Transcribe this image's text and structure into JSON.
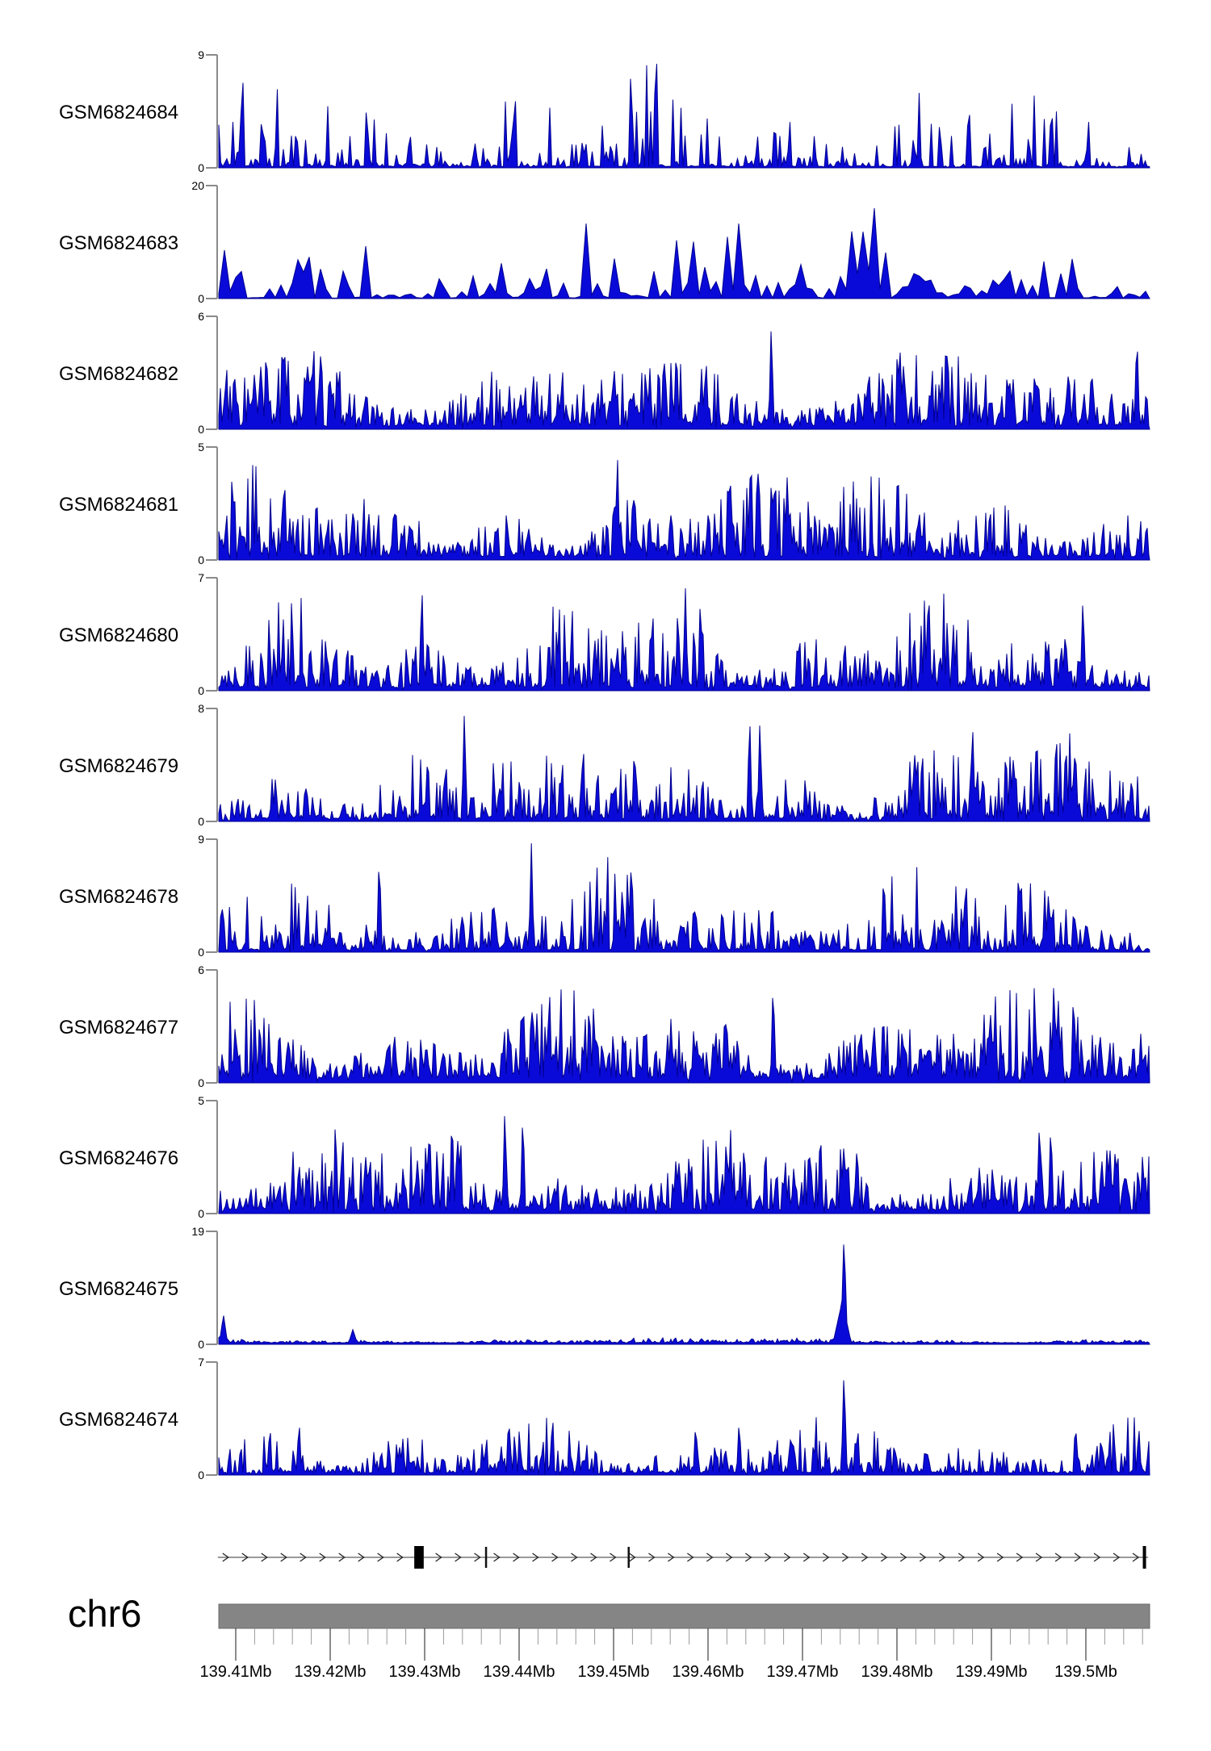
{
  "figure": {
    "kind": "genome-coverage-tracks",
    "background": "#ffffff",
    "chromosome_label": "chr6"
  },
  "colors": {
    "signal_fill": "#0a0ad8",
    "signal_stroke": "#000090",
    "axis_gray": "#8a8a8a",
    "text_black": "#000000",
    "ruler_bar_fill": "#858585",
    "ruler_bar_stroke": "#6b6b6b",
    "minor_tick": "#999999",
    "major_tick": "#1a1a1a",
    "gene_line": "#787878",
    "chevron": "#222222",
    "exon_fill": "#000000"
  },
  "chart_data": {
    "type": "area",
    "chromosome": "chr6",
    "x_domain_mb": [
      139.408,
      139.507
    ],
    "x_axis": {
      "tick_labels": [
        "139.41Mb",
        "139.42Mb",
        "139.43Mb",
        "139.44Mb",
        "139.45Mb",
        "139.46Mb",
        "139.47Mb",
        "139.48Mb",
        "139.49Mb",
        "139.5Mb"
      ],
      "tick_values_mb": [
        139.41,
        139.42,
        139.43,
        139.44,
        139.45,
        139.46,
        139.47,
        139.48,
        139.49,
        139.5
      ],
      "major_tick_step_mb": 0.01,
      "minor_tick_step_mb": 0.002
    },
    "tracks": [
      {
        "label": "GSM6824684",
        "ymax": 9,
        "yticks": [
          0,
          9
        ],
        "seed": 11,
        "noise": {
          "floor": 0.012,
          "amp": 1.0,
          "k": 5.2,
          "step": 2.5,
          "zc": 0.12
        },
        "peaks": [
          {
            "mb": 139.4107,
            "value": 9.0
          }
        ]
      },
      {
        "label": "GSM6824683",
        "ymax": 20,
        "yticks": [
          0,
          20
        ],
        "seed": 22,
        "noise": {
          "floor": 0.01,
          "amp": 0.88,
          "k": 2.8,
          "step": 7,
          "zc": 0.28
        },
        "peaks": [
          {
            "mb": 139.447,
            "value": 20
          },
          {
            "mb": 139.4502,
            "value": 12
          },
          {
            "mb": 139.4763,
            "value": 19.5
          }
        ]
      },
      {
        "label": "GSM6824682",
        "ymax": 6,
        "yticks": [
          0,
          6
        ],
        "seed": 33,
        "noise": {
          "floor": 0.03,
          "amp": 0.8,
          "k": 2.1,
          "step": 2,
          "zc": 0.04
        },
        "peaks": [
          {
            "mb": 139.4667,
            "value": 5.9
          },
          {
            "mb": 139.5054,
            "value": 5.5
          }
        ]
      },
      {
        "label": "GSM6824681",
        "ymax": 5,
        "yticks": [
          0,
          5
        ],
        "seed": 44,
        "noise": {
          "floor": 0.03,
          "amp": 0.82,
          "k": 2.2,
          "step": 2,
          "zc": 0.04
        },
        "peaks": [
          {
            "mb": 139.4504,
            "value": 4.9
          },
          {
            "mb": 139.4645,
            "value": 4.5
          },
          {
            "mb": 139.4671,
            "value": 4.3
          },
          {
            "mb": 139.4684,
            "value": 4.0
          }
        ]
      },
      {
        "label": "GSM6824680",
        "ymax": 7,
        "yticks": [
          0,
          7
        ],
        "seed": 55,
        "noise": {
          "floor": 0.03,
          "amp": 0.85,
          "k": 2.3,
          "step": 2,
          "zc": 0.05
        },
        "peaks": [
          {
            "mb": 139.4297,
            "value": 7.0
          },
          {
            "mb": 139.4576,
            "value": 6.5
          },
          {
            "mb": 139.4592,
            "value": 6.3
          },
          {
            "mb": 139.4997,
            "value": 6.2
          }
        ]
      },
      {
        "label": "GSM6824679",
        "ymax": 8,
        "yticks": [
          0,
          8
        ],
        "seed": 66,
        "noise": {
          "floor": 0.025,
          "amp": 0.82,
          "k": 2.6,
          "step": 2,
          "zc": 0.06
        },
        "peaks": [
          {
            "mb": 139.4342,
            "value": 7.8
          },
          {
            "mb": 139.4644,
            "value": 8.0
          },
          {
            "mb": 139.4655,
            "value": 7.6
          },
          {
            "mb": 139.488,
            "value": 7.2
          }
        ]
      },
      {
        "label": "GSM6824678",
        "ymax": 9,
        "yticks": [
          0,
          9
        ],
        "seed": 77,
        "noise": {
          "floor": 0.02,
          "amp": 0.85,
          "k": 3.0,
          "step": 2.2,
          "zc": 0.08
        },
        "peaks": [
          {
            "mb": 139.4252,
            "value": 8.6
          },
          {
            "mb": 139.4413,
            "value": 8.7
          },
          {
            "mb": 139.4519,
            "value": 8.5
          },
          {
            "mb": 139.4929,
            "value": 7.7
          }
        ]
      },
      {
        "label": "GSM6824677",
        "ymax": 6,
        "yticks": [
          0,
          6
        ],
        "seed": 88,
        "noise": {
          "floor": 0.04,
          "amp": 0.85,
          "k": 1.9,
          "step": 2,
          "zc": 0.03
        },
        "peaks": [
          {
            "mb": 139.4432,
            "value": 5.5
          },
          {
            "mb": 139.4669,
            "value": 5.8
          },
          {
            "mb": 139.4966,
            "value": 5.4
          },
          {
            "mb": 139.4987,
            "value": 5.3
          }
        ]
      },
      {
        "label": "GSM6824676",
        "ymax": 5,
        "yticks": [
          0,
          5
        ],
        "seed": 99,
        "noise": {
          "floor": 0.03,
          "amp": 0.8,
          "k": 2.2,
          "step": 2,
          "zc": 0.05
        },
        "peaks": [
          {
            "mb": 139.4329,
            "value": 4.8
          },
          {
            "mb": 139.4385,
            "value": 5.0
          },
          {
            "mb": 139.4404,
            "value": 4.8
          },
          {
            "mb": 139.4951,
            "value": 4.5
          },
          {
            "mb": 139.4963,
            "value": 4.3
          }
        ]
      },
      {
        "label": "GSM6824675",
        "ymax": 19,
        "yticks": [
          0,
          19
        ],
        "seed": 111,
        "noise": {
          "floor": 0.013,
          "amp": 0.05,
          "k": 2.0,
          "step": 2,
          "zc": 0
        },
        "peaks": [
          {
            "mb": 139.4087,
            "value": 5.0,
            "hw_kb": 0.45
          },
          {
            "mb": 139.4224,
            "value": 2.5,
            "hw_kb": 0.5
          },
          {
            "mb": 139.4742,
            "value": 7.2,
            "hw_kb": 1.0
          },
          {
            "mb": 139.4744,
            "value": 19,
            "hw_kb": 0.35
          }
        ]
      },
      {
        "label": "GSM6824674",
        "ymax": 7,
        "yticks": [
          0,
          7
        ],
        "seed": 122,
        "noise": {
          "floor": 0.02,
          "amp": 0.55,
          "k": 3.4,
          "step": 2,
          "zc": 0.12
        },
        "peaks": [
          {
            "mb": 139.4167,
            "value": 3.6
          },
          {
            "mb": 139.4389,
            "value": 3.9
          },
          {
            "mb": 139.4587,
            "value": 3.5
          },
          {
            "mb": 139.4633,
            "value": 3.6
          },
          {
            "mb": 139.4744,
            "value": 6.8,
            "hw_kb": 0.3
          },
          {
            "mb": 139.4989,
            "value": 3.5
          },
          {
            "mb": 139.5056,
            "value": 3.2
          }
        ]
      }
    ],
    "gene_model": {
      "strand": "+",
      "line_span_mb": [
        139.4081,
        139.5066
      ],
      "arrow_spacing_kb": 2.05,
      "features": [
        {
          "mb": 139.4294,
          "width_kb": 1.0,
          "type": "exon-box"
        },
        {
          "mb": 139.4365,
          "width_kb": 0.2,
          "type": "thin-mark"
        },
        {
          "mb": 139.4516,
          "width_kb": 0.2,
          "type": "thin-mark"
        },
        {
          "mb": 139.5062,
          "width_kb": 0.35,
          "type": "end-bar"
        }
      ]
    }
  }
}
